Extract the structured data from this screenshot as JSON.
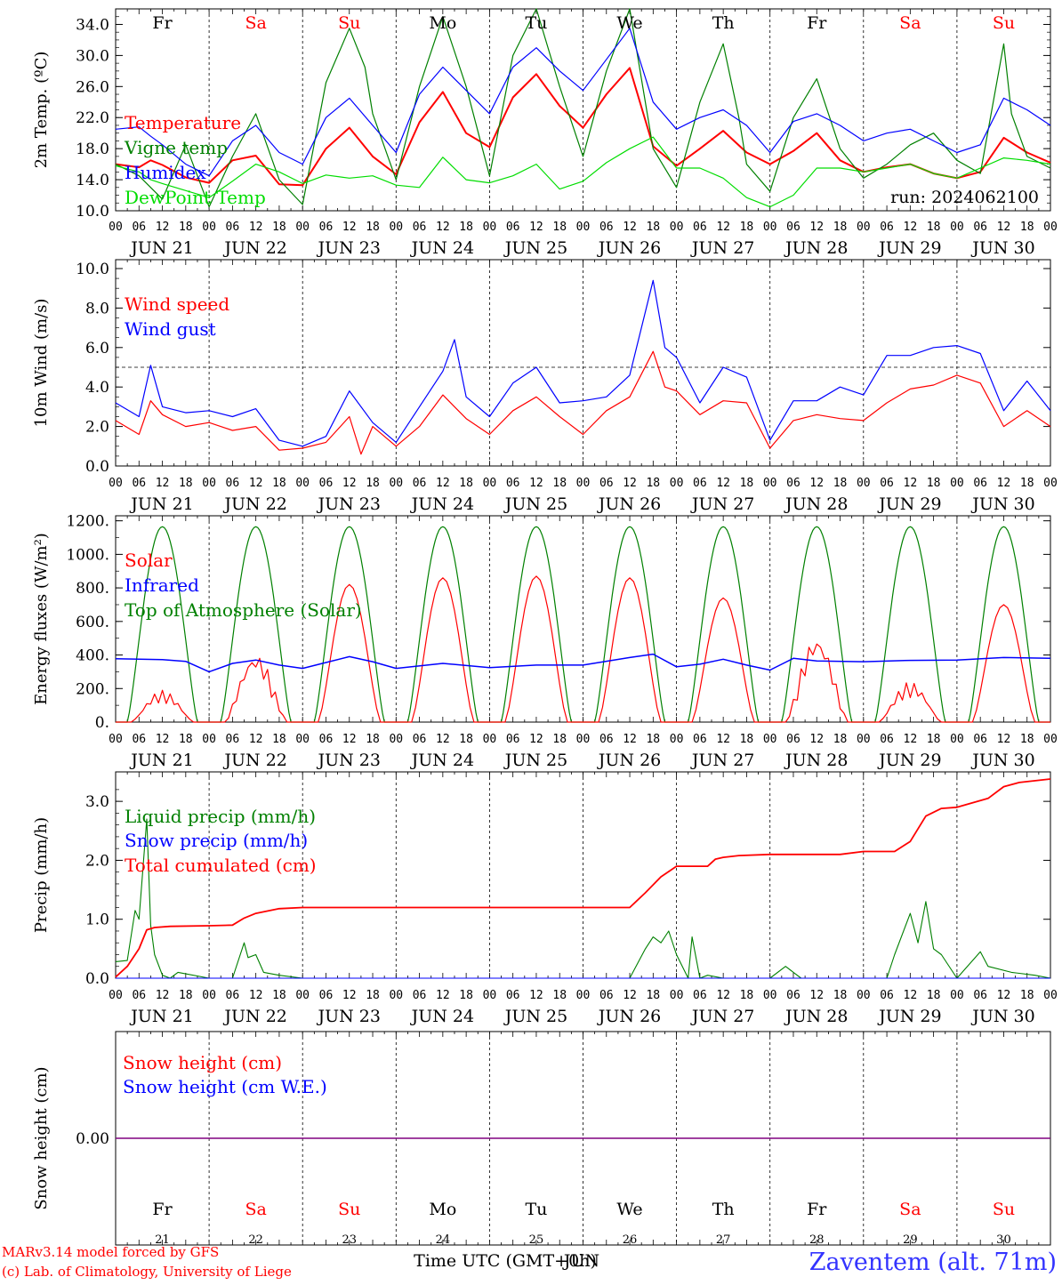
{
  "run_label": "run: 2024062100",
  "footer": {
    "model_line1": "MARv3.14 model forced by GFS",
    "model_line2": "(c) Lab. of Climatology, University of Liege",
    "time_axis_title": "Time UTC (GMT+0h)",
    "time_axis_overlay": "JUN",
    "station": "Zaventem (alt. 71m)"
  },
  "days": {
    "weekday_labels": [
      "Fr",
      "Sa",
      "Su",
      "Mo",
      "Tu",
      "We",
      "Th",
      "Fr",
      "Sa",
      "Su"
    ],
    "weekend_flags": [
      false,
      true,
      true,
      false,
      false,
      false,
      false,
      false,
      true,
      true
    ],
    "date_labels": [
      "JUN 21",
      "JUN 22",
      "JUN 23",
      "JUN 24",
      "JUN 25",
      "JUN 26",
      "JUN 27",
      "JUN 28",
      "JUN 29",
      "JUN 30"
    ],
    "day_numbers": [
      "21",
      "22",
      "23",
      "24",
      "25",
      "26",
      "27",
      "28",
      "29",
      "30"
    ],
    "hour_ticks": [
      "00",
      "06",
      "12",
      "18"
    ],
    "final_hour_tick": "00"
  },
  "colors": {
    "red": "#ff0000",
    "green": "#008000",
    "blue": "#0000ff",
    "lightgreen": "#00dd00",
    "purple": "#800080",
    "station_blue": "#3333ff",
    "black": "#000000"
  },
  "chart_data": [
    {
      "type": "line",
      "ylabel": "2m Temp. (ºC)",
      "ylim": [
        10,
        36
      ],
      "yticks": [
        "10.0",
        "14.0",
        "18.0",
        "22.0",
        "26.0",
        "30.0",
        "34.0"
      ],
      "x_unit": "hours since 2024-06-21 00 UTC",
      "grid": "vertical dashed at day boundaries",
      "legend_position": "left",
      "series": [
        {
          "name": "Temperature",
          "color": "red",
          "x": [
            0,
            6,
            9,
            12,
            18,
            24,
            30,
            36,
            42,
            48,
            54,
            60,
            66,
            72,
            78,
            84,
            90,
            96,
            102,
            108,
            114,
            120,
            126,
            132,
            138,
            144,
            150,
            156,
            162,
            168,
            174,
            180,
            186,
            192,
            198,
            204,
            210,
            216,
            222,
            228,
            234,
            240
          ],
          "values": [
            16.0,
            15.6,
            16.5,
            15.9,
            14.3,
            13.6,
            16.5,
            17.1,
            13.4,
            13.3,
            18.0,
            20.7,
            17.0,
            14.7,
            21.4,
            25.3,
            20.0,
            18.2,
            24.6,
            27.6,
            23.5,
            20.7,
            25.0,
            28.4,
            18.3,
            15.8,
            18.0,
            20.3,
            17.5,
            16.0,
            17.7,
            20.0,
            16.5,
            15.0,
            15.6,
            16.0,
            14.8,
            14.2,
            15.0,
            19.4,
            17.5,
            16.2
          ]
        },
        {
          "name": "Vigne temp",
          "color": "green",
          "x": [
            0,
            6,
            9,
            12,
            18,
            24,
            30,
            36,
            42,
            48,
            54,
            60,
            64,
            66,
            72,
            78,
            84,
            90,
            96,
            102,
            108,
            114,
            120,
            126,
            132,
            138,
            144,
            150,
            156,
            160,
            162,
            168,
            174,
            180,
            186,
            192,
            198,
            204,
            210,
            216,
            222,
            228,
            230,
            234,
            240
          ],
          "values": [
            16.0,
            14.5,
            13.0,
            11.5,
            18.5,
            10.5,
            17.0,
            22.5,
            14.0,
            10.8,
            26.5,
            33.5,
            28.5,
            22.5,
            14.0,
            26.0,
            35.0,
            26.0,
            14.5,
            30.0,
            36.0,
            26.0,
            17.0,
            28.0,
            36.0,
            18.0,
            13.0,
            24.0,
            31.5,
            22.0,
            16.0,
            12.5,
            22.0,
            27.0,
            18.0,
            14.2,
            16.0,
            18.5,
            20.0,
            16.5,
            14.8,
            31.5,
            22.5,
            17.0,
            15.5
          ]
        },
        {
          "name": "Humidex",
          "color": "blue",
          "x": [
            0,
            6,
            9,
            12,
            18,
            24,
            30,
            36,
            42,
            48,
            54,
            60,
            66,
            72,
            78,
            84,
            90,
            96,
            102,
            108,
            114,
            120,
            126,
            132,
            138,
            144,
            150,
            156,
            162,
            168,
            174,
            180,
            186,
            192,
            198,
            204,
            210,
            216,
            222,
            228,
            234,
            240
          ],
          "values": [
            20.5,
            20.8,
            19.6,
            18.5,
            16.0,
            14.5,
            19.0,
            21.0,
            17.5,
            16.0,
            22.0,
            24.5,
            21.0,
            17.5,
            25.0,
            28.5,
            25.5,
            22.5,
            28.5,
            31.0,
            28.0,
            25.5,
            29.5,
            33.5,
            24.0,
            20.5,
            22.0,
            23.0,
            21.0,
            17.5,
            21.5,
            22.5,
            21.0,
            19.0,
            20.0,
            20.5,
            19.0,
            17.5,
            18.5,
            24.5,
            23.0,
            21.0
          ]
        },
        {
          "name": "DewPoint Temp",
          "color": "lightgreen",
          "x": [
            0,
            6,
            9,
            12,
            18,
            24,
            30,
            36,
            42,
            48,
            54,
            60,
            66,
            72,
            78,
            84,
            90,
            96,
            102,
            108,
            114,
            120,
            126,
            132,
            138,
            144,
            150,
            156,
            162,
            168,
            174,
            180,
            186,
            192,
            198,
            204,
            210,
            216,
            222,
            228,
            234,
            240
          ],
          "values": [
            15.8,
            15.0,
            14.0,
            13.5,
            12.6,
            11.7,
            13.8,
            16.0,
            15.0,
            13.5,
            14.6,
            14.2,
            14.5,
            13.3,
            13.0,
            16.9,
            14.0,
            13.6,
            14.5,
            16.0,
            12.8,
            13.8,
            16.2,
            18.0,
            19.5,
            15.5,
            15.5,
            14.2,
            11.7,
            10.5,
            12.0,
            15.5,
            15.5,
            15.0,
            15.5,
            16.0,
            14.8,
            14.2,
            15.5,
            16.8,
            16.5,
            16.0
          ]
        }
      ]
    },
    {
      "type": "line",
      "ylabel": "10m Wind (m/s)",
      "ylim": [
        0,
        10
      ],
      "yticks": [
        "0.0",
        "2.0",
        "4.0",
        "6.0",
        "8.0",
        "10.0"
      ],
      "reference_line": 5,
      "legend_position": "top-left",
      "series": [
        {
          "name": "Wind speed",
          "color": "red",
          "x": [
            0,
            6,
            9,
            12,
            18,
            24,
            30,
            36,
            42,
            48,
            54,
            60,
            63,
            66,
            72,
            78,
            84,
            87,
            90,
            96,
            102,
            108,
            114,
            120,
            126,
            132,
            138,
            141,
            144,
            150,
            156,
            162,
            168,
            174,
            180,
            186,
            192,
            198,
            204,
            210,
            216,
            222,
            228,
            234,
            240
          ],
          "values": [
            2.3,
            1.6,
            3.3,
            2.6,
            2.0,
            2.2,
            1.8,
            2.0,
            0.8,
            0.9,
            1.2,
            2.5,
            0.6,
            2.0,
            1.0,
            2.0,
            3.6,
            3.0,
            2.4,
            1.6,
            2.8,
            3.5,
            2.5,
            1.6,
            2.8,
            3.5,
            5.8,
            4.0,
            3.8,
            2.6,
            3.3,
            3.2,
            0.9,
            2.3,
            2.6,
            2.4,
            2.3,
            3.2,
            3.9,
            4.1,
            4.6,
            4.2,
            2.0,
            2.8,
            2.0
          ]
        },
        {
          "name": "Wind gust",
          "color": "blue",
          "x": [
            0,
            6,
            9,
            12,
            18,
            24,
            30,
            36,
            42,
            48,
            54,
            60,
            66,
            72,
            78,
            84,
            87,
            90,
            96,
            102,
            108,
            114,
            120,
            126,
            132,
            138,
            141,
            144,
            150,
            156,
            162,
            168,
            174,
            180,
            186,
            192,
            198,
            204,
            210,
            216,
            222,
            228,
            234,
            240
          ],
          "values": [
            3.2,
            2.5,
            5.1,
            3.0,
            2.7,
            2.8,
            2.5,
            2.9,
            1.3,
            1.0,
            1.5,
            3.8,
            2.2,
            1.2,
            3.0,
            4.8,
            6.4,
            3.5,
            2.5,
            4.2,
            5.0,
            3.2,
            3.3,
            3.5,
            4.6,
            9.4,
            6.0,
            5.5,
            3.2,
            5.0,
            4.5,
            1.3,
            3.3,
            3.3,
            4.0,
            3.6,
            5.6,
            5.6,
            6.0,
            6.1,
            5.7,
            2.8,
            4.3,
            2.8
          ]
        }
      ]
    },
    {
      "type": "line",
      "ylabel": "Energy fluxes (W/m²)",
      "ylim": [
        0,
        1200
      ],
      "yticks": [
        "0.",
        "200.",
        "400.",
        "600.",
        "800.",
        "1000.",
        "1200."
      ],
      "legend_position": "top-left",
      "solar_daily_peaks": [
        190,
        410,
        820,
        860,
        870,
        860,
        740,
        520,
        240,
        700
      ],
      "series": [
        {
          "name": "Solar",
          "color": "red",
          "peak_values": [
            190,
            410,
            820,
            860,
            870,
            860,
            740,
            520,
            240,
            700
          ]
        },
        {
          "name": "Infrared",
          "color": "blue",
          "x": [
            0,
            12,
            18,
            24,
            30,
            36,
            42,
            48,
            54,
            60,
            66,
            72,
            84,
            96,
            108,
            120,
            132,
            138,
            144,
            150,
            156,
            162,
            168,
            174,
            180,
            192,
            204,
            216,
            228,
            240
          ],
          "values": [
            378,
            372,
            362,
            300,
            350,
            370,
            340,
            320,
            355,
            390,
            360,
            320,
            350,
            325,
            340,
            340,
            385,
            405,
            330,
            345,
            375,
            340,
            310,
            380,
            365,
            360,
            368,
            370,
            385,
            380
          ]
        },
        {
          "name": "Top of Atmosphere (Solar)",
          "color": "green",
          "daily_peak": 1165
        }
      ]
    },
    {
      "type": "line",
      "ylabel": "Precip (mm/h)",
      "ylim": [
        0,
        3.5
      ],
      "yticks": [
        "0.0",
        "1.0",
        "2.0",
        "3.0"
      ],
      "legend_position": "top-left",
      "series": [
        {
          "name": "Liquid precip (mm/h)",
          "color": "green",
          "x": [
            0,
            3,
            5,
            6,
            8,
            9,
            10,
            12,
            14,
            16,
            24,
            30,
            33,
            34,
            36,
            38,
            42,
            48,
            132,
            136,
            138,
            140,
            142,
            144,
            147,
            148,
            150,
            152,
            156,
            168,
            172,
            174,
            176,
            180,
            198,
            200,
            204,
            206,
            208,
            210,
            212,
            216,
            222,
            224,
            230,
            236,
            240
          ],
          "values": [
            0.28,
            0.3,
            1.15,
            1.0,
            2.7,
            0.9,
            0.4,
            0.05,
            0.0,
            0.1,
            0.0,
            0.0,
            0.6,
            0.35,
            0.4,
            0.1,
            0.05,
            0.0,
            0.0,
            0.5,
            0.7,
            0.6,
            0.8,
            0.4,
            0.0,
            0.7,
            0.0,
            0.05,
            0.0,
            0.0,
            0.2,
            0.1,
            0.0,
            0.0,
            0.0,
            0.4,
            1.1,
            0.6,
            1.3,
            0.5,
            0.4,
            0.0,
            0.45,
            0.2,
            0.1,
            0.05,
            0.0
          ]
        },
        {
          "name": "Snow precip (mm/h)",
          "color": "blue",
          "x": [
            0,
            240
          ],
          "values": [
            0.0,
            0.0
          ]
        },
        {
          "name": "Total cumulated (cm)",
          "color": "red",
          "x": [
            0,
            3,
            6,
            8,
            10,
            14,
            24,
            30,
            33,
            36,
            42,
            48,
            60,
            90,
            120,
            132,
            136,
            140,
            144,
            148,
            150,
            152,
            154,
            156,
            160,
            168,
            180,
            186,
            192,
            200,
            204,
            208,
            212,
            216,
            224,
            228,
            232,
            240
          ],
          "values": [
            0.02,
            0.2,
            0.5,
            0.82,
            0.86,
            0.88,
            0.89,
            0.9,
            1.02,
            1.1,
            1.18,
            1.2,
            1.2,
            1.2,
            1.2,
            1.2,
            1.45,
            1.72,
            1.9,
            1.9,
            1.9,
            1.9,
            2.02,
            2.05,
            2.08,
            2.1,
            2.1,
            2.1,
            2.15,
            2.15,
            2.32,
            2.75,
            2.88,
            2.9,
            3.05,
            3.25,
            3.32,
            3.38
          ]
        }
      ]
    },
    {
      "type": "line",
      "ylabel": "Snow height (cm)",
      "ylim": [
        -1,
        1
      ],
      "yticks": [
        "0.00"
      ],
      "legend_position": "top-left",
      "series": [
        {
          "name": "Snow height (cm)",
          "color": "red",
          "x": [
            0,
            240
          ],
          "values": [
            0.0,
            0.0
          ]
        },
        {
          "name": "Snow height (cm W.E.)",
          "color": "blue",
          "x": [
            0,
            240
          ],
          "values": [
            0.0,
            0.0
          ]
        }
      ]
    }
  ]
}
